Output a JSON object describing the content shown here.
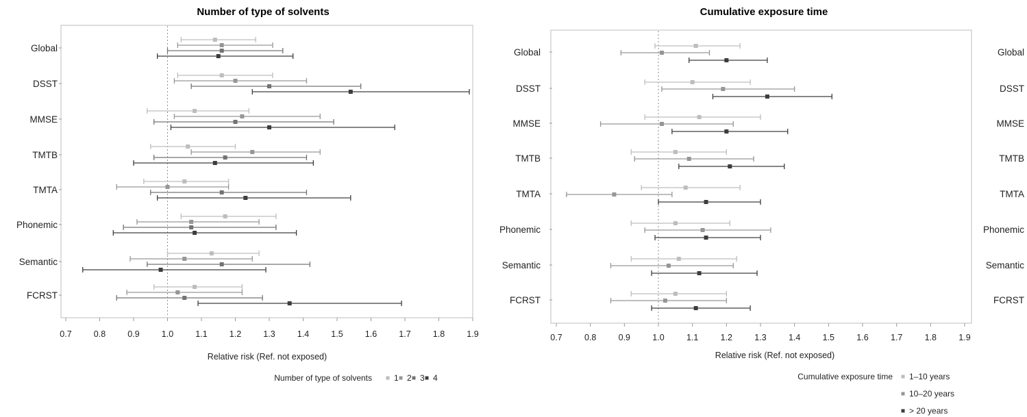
{
  "chart_data": [
    {
      "type": "forest",
      "title": "Number of type of solvents",
      "xlabel": "Relative risk (Ref. not exposed)",
      "ylabel": "",
      "xlim": [
        0.7,
        1.9
      ],
      "xticks": [
        "0.7",
        "0.8",
        "0.9",
        "1.0",
        "1.1",
        "1.2",
        "1.3",
        "1.4",
        "1.5",
        "1.6",
        "1.7",
        "1.8",
        "1.9"
      ],
      "reference_line": 1.0,
      "categories": [
        "Global",
        "DSST",
        "MMSE",
        "TMTB",
        "TMTA",
        "Phonemic",
        "Semantic",
        "FCRST"
      ],
      "legend_title": "Number of type of solvents",
      "series": [
        {
          "name": "1",
          "color": "#bdbdbd",
          "points": [
            {
              "est": 1.14,
              "lo": 1.04,
              "hi": 1.26
            },
            {
              "est": 1.16,
              "lo": 1.03,
              "hi": 1.31
            },
            {
              "est": 1.08,
              "lo": 0.94,
              "hi": 1.24
            },
            {
              "est": 1.06,
              "lo": 0.95,
              "hi": 1.2
            },
            {
              "est": 1.05,
              "lo": 0.93,
              "hi": 1.18
            },
            {
              "est": 1.17,
              "lo": 1.04,
              "hi": 1.32
            },
            {
              "est": 1.13,
              "lo": 1.0,
              "hi": 1.27
            },
            {
              "est": 1.08,
              "lo": 0.96,
              "hi": 1.22
            }
          ]
        },
        {
          "name": "2",
          "color": "#969696",
          "points": [
            {
              "est": 1.16,
              "lo": 1.03,
              "hi": 1.31
            },
            {
              "est": 1.2,
              "lo": 1.02,
              "hi": 1.41
            },
            {
              "est": 1.22,
              "lo": 1.02,
              "hi": 1.45
            },
            {
              "est": 1.25,
              "lo": 1.07,
              "hi": 1.45
            },
            {
              "est": 1.0,
              "lo": 0.85,
              "hi": 1.18
            },
            {
              "est": 1.07,
              "lo": 0.91,
              "hi": 1.27
            },
            {
              "est": 1.05,
              "lo": 0.89,
              "hi": 1.25
            },
            {
              "est": 1.03,
              "lo": 0.88,
              "hi": 1.22
            }
          ]
        },
        {
          "name": "3",
          "color": "#737373",
          "points": [
            {
              "est": 1.16,
              "lo": 1.0,
              "hi": 1.34
            },
            {
              "est": 1.3,
              "lo": 1.07,
              "hi": 1.57
            },
            {
              "est": 1.2,
              "lo": 0.96,
              "hi": 1.49
            },
            {
              "est": 1.17,
              "lo": 0.96,
              "hi": 1.41
            },
            {
              "est": 1.16,
              "lo": 0.95,
              "hi": 1.41
            },
            {
              "est": 1.07,
              "lo": 0.87,
              "hi": 1.32
            },
            {
              "est": 1.16,
              "lo": 0.94,
              "hi": 1.42
            },
            {
              "est": 1.05,
              "lo": 0.85,
              "hi": 1.28
            }
          ]
        },
        {
          "name": "4",
          "color": "#3d3d3d",
          "points": [
            {
              "est": 1.15,
              "lo": 0.97,
              "hi": 1.37
            },
            {
              "est": 1.54,
              "lo": 1.25,
              "hi": 1.89
            },
            {
              "est": 1.3,
              "lo": 1.01,
              "hi": 1.67
            },
            {
              "est": 1.14,
              "lo": 0.9,
              "hi": 1.43
            },
            {
              "est": 1.23,
              "lo": 0.97,
              "hi": 1.54
            },
            {
              "est": 1.08,
              "lo": 0.84,
              "hi": 1.38
            },
            {
              "est": 0.98,
              "lo": 0.75,
              "hi": 1.29
            },
            {
              "est": 1.36,
              "lo": 1.09,
              "hi": 1.69
            }
          ]
        }
      ]
    },
    {
      "type": "forest",
      "title": "Cumulative exposure time",
      "xlabel": "Relative risk (Ref. not exposed)",
      "ylabel": "",
      "xlim": [
        0.7,
        1.9
      ],
      "xticks": [
        "0.7",
        "0.8",
        "0.9",
        "1.0",
        "1.1",
        "1.2",
        "1.3",
        "1.4",
        "1.5",
        "1.6",
        "1.7",
        "1.8",
        "1.9"
      ],
      "reference_line": 1.0,
      "categories": [
        "Global",
        "DSST",
        "MMSE",
        "TMTB",
        "TMTA",
        "Phonemic",
        "Semantic",
        "FCRST"
      ],
      "legend_title": "Cumulative exposure time",
      "series": [
        {
          "name": "1–10 years",
          "color": "#bdbdbd",
          "points": [
            {
              "est": 1.11,
              "lo": 0.99,
              "hi": 1.24
            },
            {
              "est": 1.1,
              "lo": 0.96,
              "hi": 1.27
            },
            {
              "est": 1.12,
              "lo": 0.96,
              "hi": 1.3
            },
            {
              "est": 1.05,
              "lo": 0.92,
              "hi": 1.2
            },
            {
              "est": 1.08,
              "lo": 0.95,
              "hi": 1.24
            },
            {
              "est": 1.05,
              "lo": 0.92,
              "hi": 1.21
            },
            {
              "est": 1.06,
              "lo": 0.92,
              "hi": 1.23
            },
            {
              "est": 1.05,
              "lo": 0.92,
              "hi": 1.2
            }
          ]
        },
        {
          "name": "10–20 years",
          "color": "#969696",
          "points": [
            {
              "est": 1.01,
              "lo": 0.89,
              "hi": 1.15
            },
            {
              "est": 1.19,
              "lo": 1.01,
              "hi": 1.4
            },
            {
              "est": 1.01,
              "lo": 0.83,
              "hi": 1.22
            },
            {
              "est": 1.09,
              "lo": 0.93,
              "hi": 1.28
            },
            {
              "est": 0.87,
              "lo": 0.73,
              "hi": 1.04
            },
            {
              "est": 1.13,
              "lo": 0.96,
              "hi": 1.33
            },
            {
              "est": 1.03,
              "lo": 0.86,
              "hi": 1.22
            },
            {
              "est": 1.02,
              "lo": 0.86,
              "hi": 1.2
            }
          ]
        },
        {
          "name": "> 20 years",
          "color": "#3d3d3d",
          "points": [
            {
              "est": 1.2,
              "lo": 1.09,
              "hi": 1.32
            },
            {
              "est": 1.32,
              "lo": 1.16,
              "hi": 1.51
            },
            {
              "est": 1.2,
              "lo": 1.04,
              "hi": 1.38
            },
            {
              "est": 1.21,
              "lo": 1.06,
              "hi": 1.37
            },
            {
              "est": 1.14,
              "lo": 1.0,
              "hi": 1.3
            },
            {
              "est": 1.14,
              "lo": 0.99,
              "hi": 1.3
            },
            {
              "est": 1.12,
              "lo": 0.98,
              "hi": 1.29
            },
            {
              "est": 1.11,
              "lo": 0.98,
              "hi": 1.27
            }
          ]
        }
      ]
    }
  ]
}
